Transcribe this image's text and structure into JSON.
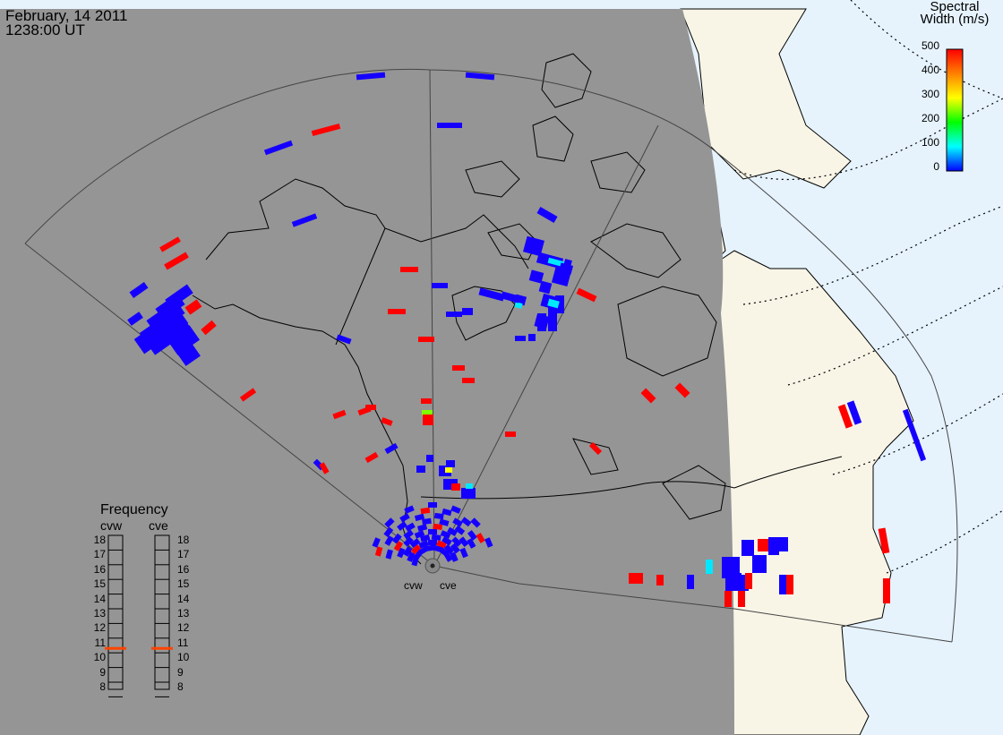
{
  "header": {
    "date": "February, 14 2011",
    "time": "1238:00 UT"
  },
  "colorbar": {
    "title_line1": "Spectral",
    "title_line2": "Width (m/s)",
    "ticks": [
      "500",
      "400",
      "300",
      "200",
      "100",
      "0"
    ],
    "range": [
      0,
      500
    ],
    "colors": [
      "#0000ff",
      "#00ffff",
      "#00ff00",
      "#ffff00",
      "#ff8000",
      "#ff0000"
    ]
  },
  "frequency": {
    "title": "Frequency",
    "radars": [
      "cvw",
      "cve"
    ],
    "scale": [
      "18",
      "17",
      "16",
      "15",
      "14",
      "13",
      "12",
      "11",
      "10",
      "9",
      "8"
    ],
    "values": [
      10.8,
      10.8
    ],
    "marker_color": "#ff4400"
  },
  "stations": [
    "cvw",
    "cve"
  ],
  "colors": {
    "night": "#959595",
    "ocean": "#e6f3fd",
    "land": "#f8f5e7",
    "low_width": "#1500ff",
    "high_width": "#ff0000"
  }
}
